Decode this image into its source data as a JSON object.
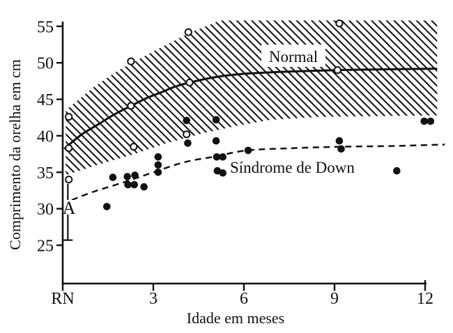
{
  "figure": {
    "background": "#ffffff",
    "ink": "#111111"
  },
  "chart_data": {
    "type": "scatter",
    "title": "",
    "xlabel": "Idade em meses",
    "ylabel": "Comprimento da orelha em cm",
    "xlim_months": [
      0,
      12
    ],
    "ylim_cm": [
      25,
      55
    ],
    "y_ticks_cm": [
      25,
      30,
      35,
      40,
      45,
      50,
      55
    ],
    "x_ticks": [
      {
        "label": "RN",
        "month": 0
      },
      {
        "label": "3",
        "month": 3
      },
      {
        "label": "6",
        "month": 6
      },
      {
        "label": "9",
        "month": 9
      },
      {
        "label": "12",
        "month": 12
      }
    ],
    "grid": false,
    "series": [
      {
        "name": "Normal",
        "marker": "open-circle",
        "points_month_cm": [
          [
            0.2,
            42.6
          ],
          [
            0.2,
            38.3
          ],
          [
            0.2,
            34.0
          ],
          [
            2.26,
            50.2
          ],
          [
            2.26,
            44.1
          ],
          [
            2.35,
            38.5
          ],
          [
            4.16,
            54.2
          ],
          [
            4.2,
            47.3
          ],
          [
            4.1,
            40.2
          ],
          [
            9.16,
            55.4
          ],
          [
            9.1,
            49.0
          ]
        ]
      },
      {
        "name": "Síndrome de Down",
        "marker": "filled-circle",
        "points_month_cm": [
          [
            1.46,
            30.3
          ],
          [
            1.66,
            34.3
          ],
          [
            2.14,
            34.4
          ],
          [
            2.39,
            34.6
          ],
          [
            2.16,
            33.3
          ],
          [
            2.37,
            33.3
          ],
          [
            2.69,
            33.0
          ],
          [
            3.16,
            35.0
          ],
          [
            3.16,
            36.0
          ],
          [
            3.16,
            37.1
          ],
          [
            4.1,
            42.1
          ],
          [
            4.14,
            39.0
          ],
          [
            5.08,
            42.2
          ],
          [
            5.08,
            39.3
          ],
          [
            5.1,
            37.1
          ],
          [
            5.3,
            37.1
          ],
          [
            5.12,
            35.2
          ],
          [
            5.3,
            34.9
          ],
          [
            6.14,
            38.0
          ],
          [
            9.16,
            39.3
          ],
          [
            9.22,
            38.2
          ],
          [
            11.06,
            35.2
          ],
          [
            11.97,
            42.0
          ],
          [
            12.18,
            42.0
          ]
        ]
      }
    ],
    "curves": [
      {
        "name": "normal-mean",
        "style": "solid",
        "points_month_cm": [
          [
            0.05,
            38.2
          ],
          [
            0.6,
            40.1
          ],
          [
            1.15,
            41.5
          ],
          [
            1.7,
            42.9
          ],
          [
            2.26,
            44.1
          ],
          [
            2.8,
            45.2
          ],
          [
            3.23,
            45.9
          ],
          [
            3.7,
            46.7
          ],
          [
            4.2,
            47.3
          ],
          [
            5.0,
            48.0
          ],
          [
            6.0,
            48.5
          ],
          [
            7.5,
            48.8
          ],
          [
            9.1,
            49.0
          ],
          [
            10.5,
            49.1
          ],
          [
            12.4,
            49.2
          ]
        ]
      },
      {
        "name": "down-mean",
        "style": "dashed",
        "points_month_cm": [
          [
            0.3,
            31.2
          ],
          [
            1.0,
            32.3
          ],
          [
            2.0,
            33.6
          ],
          [
            3.0,
            35.0
          ],
          [
            4.05,
            36.4
          ],
          [
            5.1,
            37.2
          ],
          [
            6.1,
            38.0
          ],
          [
            7.6,
            38.3
          ],
          [
            9.2,
            38.5
          ],
          [
            10.9,
            38.6
          ],
          [
            12.65,
            38.8
          ]
        ]
      }
    ],
    "band": {
      "name": "normal-range-hatched",
      "top_month_cm": [
        [
          0.1,
          43.5
        ],
        [
          1.0,
          46.6
        ],
        [
          1.85,
          49.0
        ],
        [
          3.2,
          52.0
        ],
        [
          4.2,
          54.1
        ],
        [
          5.2,
          55.8
        ],
        [
          12.4,
          55.8
        ]
      ],
      "bottom_month_cm": [
        [
          0.1,
          34.6
        ],
        [
          1.15,
          36.0
        ],
        [
          2.3,
          37.4
        ],
        [
          3.45,
          39.0
        ],
        [
          4.6,
          40.3
        ],
        [
          5.8,
          41.4
        ],
        [
          6.9,
          42.2
        ],
        [
          8.5,
          42.6
        ],
        [
          12.4,
          42.8
        ]
      ]
    },
    "annotations": [
      {
        "text": "Normal"
      },
      {
        "text": "Síndrome de Down"
      }
    ],
    "error_bar": {
      "label": "A",
      "month": 0.17,
      "top_cm": 34.0,
      "bottom_cm": 25.7,
      "label_cm": 30
    }
  }
}
